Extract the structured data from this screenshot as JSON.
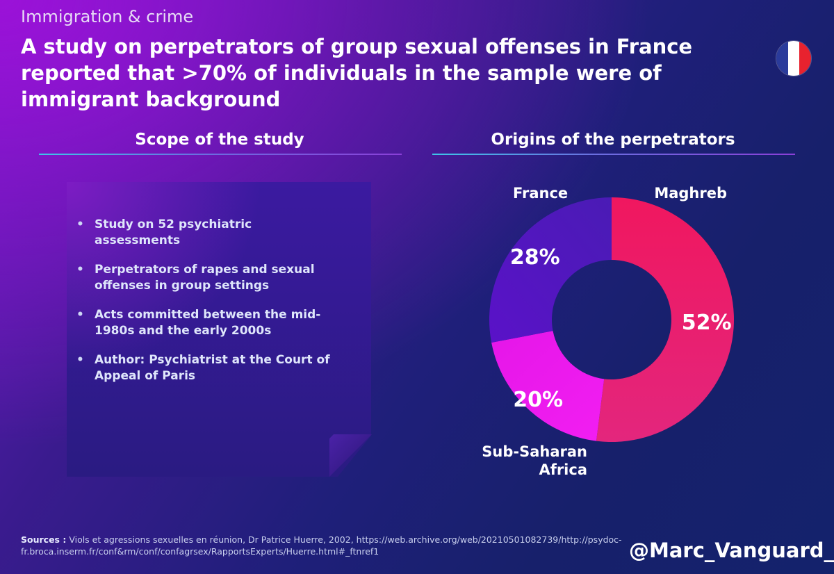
{
  "header": {
    "category": "Immigration & crime",
    "title": "A study on perpetrators of group sexual offenses in France reported that >70% of individuals in the sample were of immigrant background",
    "flag_colors": [
      "#2a3b9b",
      "#ffffff",
      "#e8222e"
    ]
  },
  "scope": {
    "title": "Scope of the study",
    "bullets": [
      "Study on 52 psychiatric assessments",
      "Perpetrators of rapes and sexual offenses in group settings",
      "Acts committed between the mid-1980s and the early 2000s",
      "Author: Psychiatrist at the Court of Appeal of Paris"
    ]
  },
  "origins": {
    "title": "Origins of the perpetrators"
  },
  "chart_data": {
    "type": "pie",
    "subtype": "donut",
    "title": "Origins of the perpetrators",
    "categories": [
      "Maghreb",
      "Sub-Saharan Africa",
      "France"
    ],
    "values": [
      52,
      20,
      28
    ],
    "value_labels": [
      "52%",
      "20%",
      "28%"
    ],
    "label_lines": [
      [
        "Maghreb"
      ],
      [
        "Sub-Saharan",
        "Africa"
      ],
      [
        "France"
      ]
    ],
    "colors": [
      "#f0175f",
      "#e516e8",
      "#5a12c8"
    ],
    "gradient_ends": [
      "#e3267d",
      "#f21ef2",
      "#4a1bb5"
    ]
  },
  "footer": {
    "sources_label": "Sources :",
    "sources_text": " Viols et agressions sexuelles en réunion, Dr Patrice Huerre, 2002, https://web.archive.org/web/20210501082739/http://psydoc-fr.broca.inserm.fr/conf&rm/conf/confagrsex/RapportsExperts/Huerre.html#_ftnref1",
    "handle": "@Marc_Vanguard_i"
  }
}
